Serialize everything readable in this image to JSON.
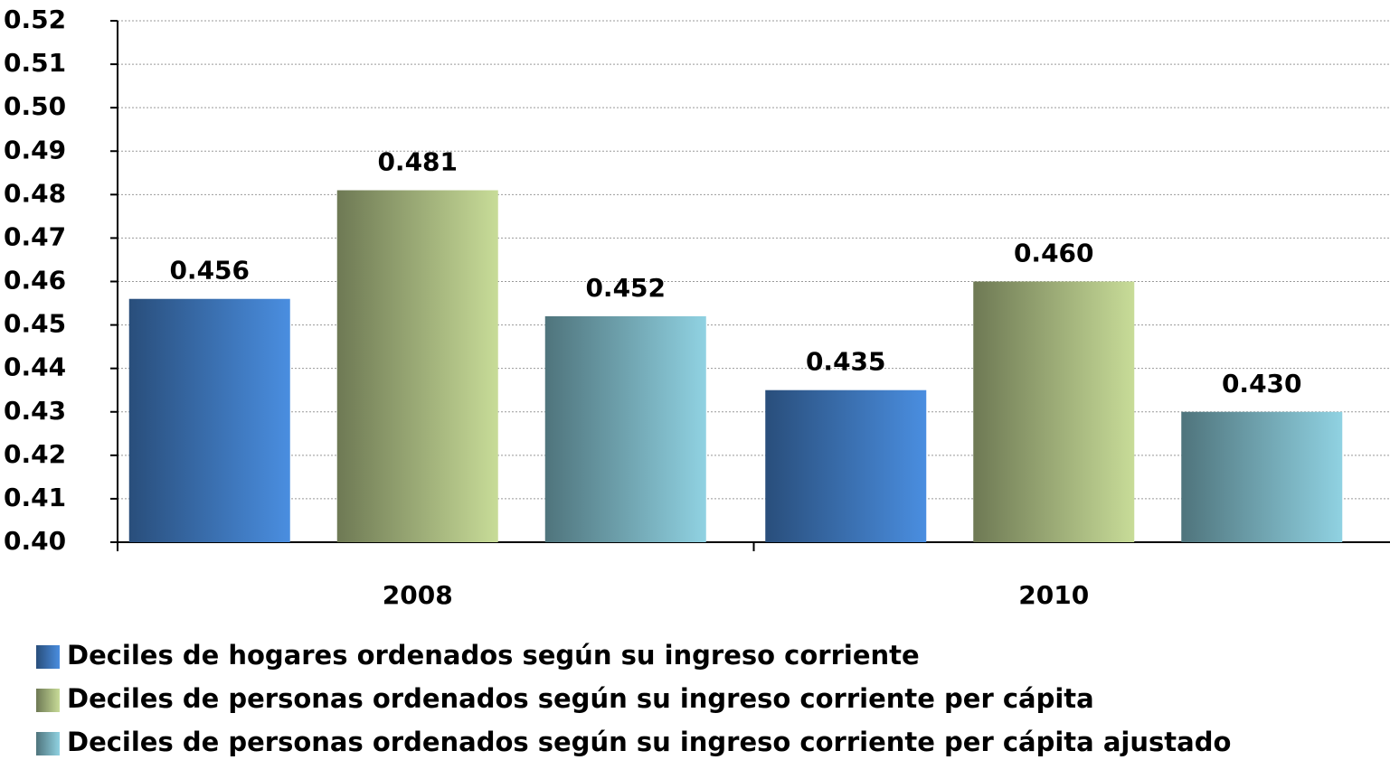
{
  "chart_data": {
    "type": "bar",
    "categories": [
      "2008",
      "2010"
    ],
    "series": [
      {
        "name": "Deciles de hogares ordenados según su ingreso corriente",
        "color": "#4a8ee0",
        "values": [
          0.456,
          0.435
        ],
        "value_labels": [
          "0.456",
          "0.435"
        ]
      },
      {
        "name": "Deciles de personas ordenados según su ingreso corriente per cápita",
        "color": "#c8dc98",
        "values": [
          0.481,
          0.46
        ],
        "value_labels": [
          "0.481",
          "0.460"
        ]
      },
      {
        "name": "Deciles de personas ordenados según su ingreso corriente per cápita ajustado",
        "color": "#90d2e2",
        "values": [
          0.452,
          0.43
        ],
        "value_labels": [
          "0.452",
          "0.430"
        ]
      }
    ],
    "ylim": [
      0.4,
      0.52
    ],
    "yticks": [
      {
        "value": 0.4,
        "label": "0.40"
      },
      0.41,
      0.42,
      0.43,
      0.44,
      0.45,
      0.46,
      0.47,
      0.48,
      0.49,
      {
        "value": 0.5,
        "label": "0.50"
      },
      0.51,
      0.52
    ],
    "grid": true,
    "legend": "bottom"
  }
}
